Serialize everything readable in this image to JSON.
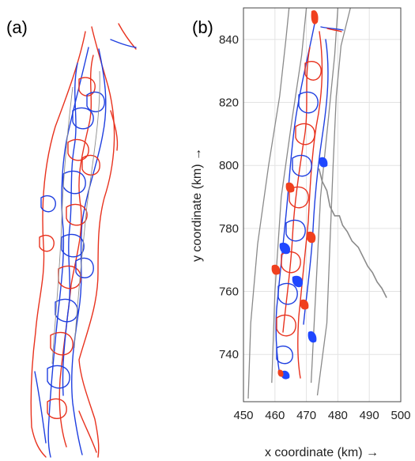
{
  "chart_data": [
    {
      "type": "map",
      "panel_label": "(a)",
      "description_visible": "braided channel network, red/blue lines, no axes"
    },
    {
      "type": "map",
      "panel_label": "(b)",
      "xlabel": "x coordinate (km) →",
      "ylabel": "y coordinate (km) →",
      "xlim": [
        450,
        500
      ],
      "ylim": [
        725,
        850
      ],
      "xticks": [
        450,
        460,
        470,
        480,
        490,
        500
      ],
      "yticks": [
        740,
        760,
        780,
        800,
        820,
        840
      ],
      "grid": true,
      "colors": {
        "erosion": "#f0401e",
        "deposition": "#1f47ff",
        "banks": "#8a8a8a"
      },
      "features": {
        "left_bank": [
          [
            451.5,
            726
          ],
          [
            452.3,
            750
          ],
          [
            454.5,
            775
          ],
          [
            458.0,
            800
          ],
          [
            461.5,
            822
          ],
          [
            463.5,
            840
          ],
          [
            464.5,
            850
          ]
        ],
        "inner_left_bank": [
          [
            459.0,
            731
          ],
          [
            460.0,
            760
          ],
          [
            462.0,
            790
          ],
          [
            465.5,
            815
          ],
          [
            468.5,
            835
          ],
          [
            470.0,
            850
          ]
        ],
        "inner_right_bank": [
          [
            471.5,
            731
          ],
          [
            473.0,
            760
          ],
          [
            474.5,
            790
          ],
          [
            477.0,
            815
          ],
          [
            479.0,
            835
          ],
          [
            480.0,
            850
          ]
        ],
        "right_bank": [
          [
            473.5,
            727
          ],
          [
            476.5,
            750
          ],
          [
            477.5,
            775
          ],
          [
            478.5,
            800
          ],
          [
            479.5,
            822
          ],
          [
            481.0,
            838
          ],
          [
            484.0,
            850
          ]
        ],
        "tributary": [
          [
            474.0,
            799
          ],
          [
            475.0,
            795
          ],
          [
            476.5,
            792
          ],
          [
            477.5,
            787
          ],
          [
            479.0,
            784
          ],
          [
            480.5,
            784
          ],
          [
            481.5,
            781
          ],
          [
            483.0,
            779
          ],
          [
            484.5,
            776
          ],
          [
            486.5,
            774
          ],
          [
            488.0,
            771
          ],
          [
            489.5,
            768
          ],
          [
            491.0,
            766
          ],
          [
            492.5,
            763
          ],
          [
            494.0,
            761
          ],
          [
            495.0,
            759
          ],
          [
            495.5,
            758
          ]
        ]
      }
    }
  ]
}
